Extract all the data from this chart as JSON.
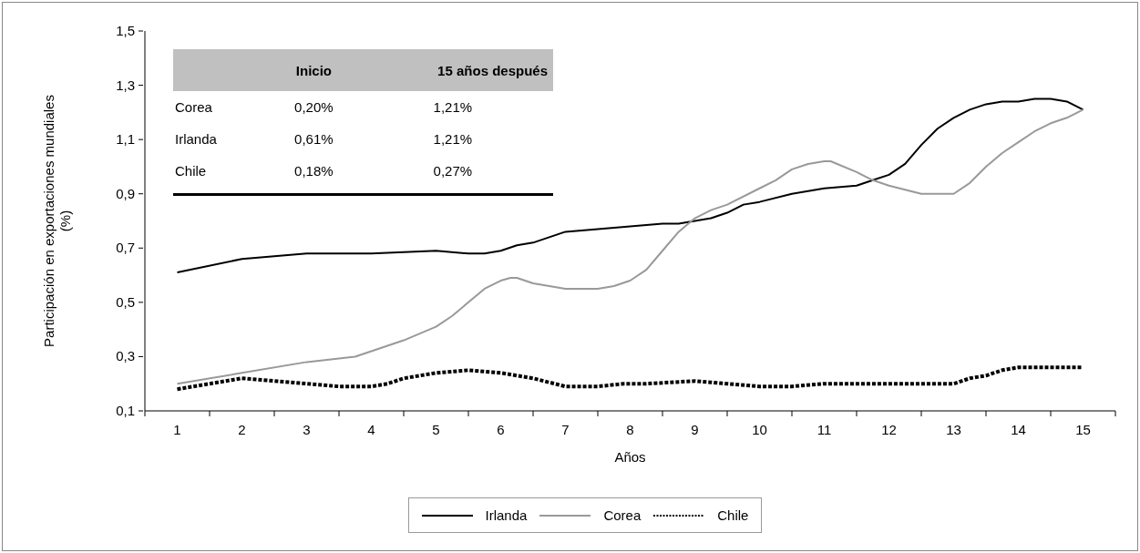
{
  "chart_data": {
    "type": "line",
    "xlabel": "Años",
    "ylabel": "Participación en exportaciones mundiales (%)",
    "xlim": [
      0.5,
      15.5
    ],
    "xticks": [
      {
        "value": 0.5,
        "label": null
      },
      1,
      {
        "value": 1.5,
        "label": null
      },
      2,
      {
        "value": 2.5,
        "label": null
      },
      3,
      {
        "value": 3.5,
        "label": null
      },
      4,
      {
        "value": 4.5,
        "label": null
      },
      5,
      {
        "value": 5.5,
        "label": null
      },
      6,
      {
        "value": 6.5,
        "label": null
      },
      7,
      {
        "value": 7.5,
        "label": null
      },
      8,
      {
        "value": 8.5,
        "label": null
      },
      9,
      {
        "value": 9.5,
        "label": null
      },
      10,
      {
        "value": 10.5,
        "label": null
      },
      11,
      {
        "value": 11.5,
        "label": null
      },
      12,
      {
        "value": 12.5,
        "label": null
      },
      13,
      {
        "value": 13.5,
        "label": null
      },
      14,
      {
        "value": 14.5,
        "label": null
      },
      15,
      {
        "value": 15.5,
        "label": null
      }
    ],
    "ylim": [
      0.1,
      1.5
    ],
    "yticks": [
      {
        "value": 0.1,
        "label": "0,1"
      },
      {
        "value": 0.3,
        "label": "0,3"
      },
      {
        "value": 0.5,
        "label": "0,5"
      },
      {
        "value": 0.7,
        "label": "0,7"
      },
      {
        "value": 0.9,
        "label": "0,9"
      },
      {
        "value": 1.1,
        "label": "1,1"
      },
      {
        "value": 1.3,
        "label": "1,3"
      },
      {
        "value": 1.5,
        "label": "1,5"
      }
    ],
    "grid": false,
    "legend": "bottom",
    "marker": "none",
    "series": [
      {
        "name": "Irlanda",
        "color": "#000000",
        "line_style": "solid",
        "x": [
          1,
          2,
          3,
          4,
          5,
          5.5,
          5.75,
          6,
          6.25,
          6.5,
          6.75,
          7,
          7.5,
          8,
          8.5,
          8.75,
          9,
          9.25,
          9.5,
          9.75,
          10,
          10.5,
          11,
          11.5,
          11.75,
          12,
          12.25,
          12.5,
          12.75,
          13,
          13.25,
          13.5,
          13.75,
          14,
          14.25,
          14.5,
          14.75,
          15
        ],
        "values": [
          0.61,
          0.66,
          0.68,
          0.68,
          0.69,
          0.68,
          0.68,
          0.69,
          0.71,
          0.72,
          0.74,
          0.76,
          0.77,
          0.78,
          0.79,
          0.79,
          0.8,
          0.81,
          0.83,
          0.86,
          0.87,
          0.9,
          0.92,
          0.93,
          0.95,
          0.97,
          1.01,
          1.08,
          1.14,
          1.18,
          1.21,
          1.23,
          1.24,
          1.24,
          1.25,
          1.25,
          1.24,
          1.21
        ]
      },
      {
        "name": "Corea",
        "color": "#999999",
        "line_style": "solid",
        "x": [
          1,
          2,
          3,
          3.75,
          4,
          4.5,
          5,
          5.25,
          5.5,
          5.75,
          6,
          6.15,
          6.25,
          6.5,
          6.75,
          7,
          7.5,
          7.75,
          8,
          8.25,
          8.5,
          8.75,
          9,
          9.25,
          9.5,
          10,
          10.25,
          10.5,
          10.75,
          11,
          11.1,
          11.5,
          11.75,
          12,
          12.5,
          12.85,
          13,
          13.25,
          13.5,
          13.75,
          14,
          14.25,
          14.5,
          14.75,
          15
        ],
        "values": [
          0.2,
          0.24,
          0.28,
          0.3,
          0.32,
          0.36,
          0.41,
          0.45,
          0.5,
          0.55,
          0.58,
          0.59,
          0.59,
          0.57,
          0.56,
          0.55,
          0.55,
          0.56,
          0.58,
          0.62,
          0.69,
          0.76,
          0.81,
          0.84,
          0.86,
          0.92,
          0.95,
          0.99,
          1.01,
          1.02,
          1.02,
          0.98,
          0.95,
          0.93,
          0.9,
          0.9,
          0.9,
          0.94,
          1.0,
          1.05,
          1.09,
          1.13,
          1.16,
          1.18,
          1.21
        ]
      },
      {
        "name": "Chile",
        "color": "#000000",
        "line_style": "dotted",
        "x": [
          1,
          1.5,
          2,
          2.5,
          3,
          3.5,
          4,
          4.25,
          4.5,
          5,
          5.5,
          6,
          6.25,
          6.5,
          7,
          7.5,
          7.9,
          8,
          8.25,
          9,
          9.5,
          10,
          10.5,
          11,
          12,
          13,
          13.25,
          13.5,
          13.75,
          14,
          14.25,
          15
        ],
        "values": [
          0.18,
          0.2,
          0.22,
          0.21,
          0.2,
          0.19,
          0.19,
          0.2,
          0.22,
          0.24,
          0.25,
          0.24,
          0.23,
          0.22,
          0.19,
          0.19,
          0.2,
          0.2,
          0.2,
          0.21,
          0.2,
          0.19,
          0.19,
          0.2,
          0.2,
          0.2,
          0.22,
          0.23,
          0.25,
          0.26,
          0.26,
          0.26
        ]
      }
    ],
    "annotations": [
      "Inicio",
      "15 años después",
      "Corea",
      "0,20%",
      "1,21%",
      "Irlanda",
      "0,61%",
      "1,21%",
      "Chile",
      "0,18%",
      "0,27%"
    ]
  }
}
